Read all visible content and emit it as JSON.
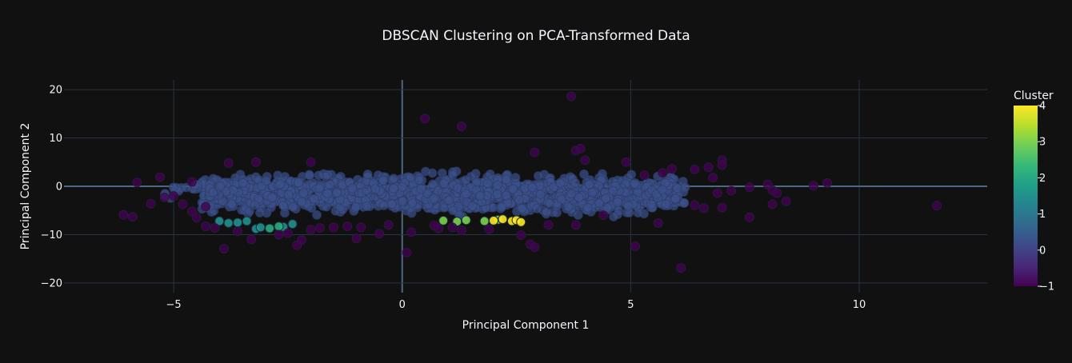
{
  "chart_data": {
    "type": "scatter",
    "title": "DBSCAN Clustering on PCA-Transformed Data",
    "xlabel": "Principal Component 1",
    "ylabel": "Principal Component 2",
    "xlim": [
      -7.4,
      12.8
    ],
    "ylim": [
      -22,
      22
    ],
    "xticks": [
      -5,
      0,
      5,
      10
    ],
    "yticks": [
      -20,
      -10,
      0,
      10,
      20
    ],
    "grid": true,
    "colorbar": {
      "title": "Cluster",
      "min": -1,
      "max": 4,
      "ticks": [
        -1,
        0,
        1,
        2,
        3,
        4
      ],
      "colorscale": [
        "#440154",
        "#482878",
        "#3e4989",
        "#31688e",
        "#26828e",
        "#1f9e89",
        "#35b779",
        "#6ece58",
        "#b5de2b",
        "#fde725"
      ]
    },
    "core_clusters": [
      {
        "cluster": 0,
        "color": "#3b518b",
        "x_range": [
          -4.4,
          6.2
        ],
        "center_y": -1.6,
        "half_height": 5.4,
        "count": 1400
      },
      {
        "cluster": 0,
        "color": "#3b518b",
        "x_range": [
          -5.2,
          -4.0
        ],
        "center_y": -1.0,
        "half_height": 2.5,
        "count": 30
      }
    ],
    "series": [
      {
        "cluster": 1,
        "color": "#21908d",
        "points": [
          [
            -4.0,
            -7.2
          ],
          [
            -3.8,
            -7.6
          ],
          [
            -3.6,
            -7.5
          ],
          [
            -3.4,
            -7.2
          ],
          [
            -3.2,
            -8.8
          ],
          [
            -3.1,
            -8.5
          ],
          [
            -2.6,
            -8.4
          ],
          [
            -2.4,
            -7.8
          ]
        ]
      },
      {
        "cluster": 2,
        "color": "#27ad81",
        "points": [
          [
            -2.9,
            -8.7
          ],
          [
            -2.7,
            -8.3
          ]
        ]
      },
      {
        "cluster": 3,
        "color": "#7ad151",
        "points": [
          [
            0.9,
            -7.1
          ],
          [
            1.2,
            -7.3
          ],
          [
            1.4,
            -7.0
          ],
          [
            1.8,
            -7.2
          ],
          [
            2.1,
            -6.9
          ]
        ]
      },
      {
        "cluster": 4,
        "color": "#fde725",
        "points": [
          [
            2.0,
            -7.1
          ],
          [
            2.2,
            -6.8
          ],
          [
            2.4,
            -7.2
          ],
          [
            2.5,
            -7.0
          ],
          [
            2.6,
            -7.4
          ]
        ]
      },
      {
        "cluster": -1,
        "color": "#440154",
        "points": [
          [
            3.7,
            18.6
          ],
          [
            0.5,
            14.0
          ],
          [
            1.3,
            12.4
          ],
          [
            2.9,
            7.0
          ],
          [
            3.8,
            7.4
          ],
          [
            3.9,
            7.8
          ],
          [
            4.0,
            5.4
          ],
          [
            4.9,
            5.0
          ],
          [
            6.7,
            3.9
          ],
          [
            7.0,
            5.4
          ],
          [
            7.0,
            4.4
          ],
          [
            5.3,
            2.3
          ],
          [
            5.7,
            2.8
          ],
          [
            5.9,
            3.6
          ],
          [
            6.4,
            3.5
          ],
          [
            6.8,
            1.8
          ],
          [
            6.9,
            -1.4
          ],
          [
            7.2,
            -0.9
          ],
          [
            7.6,
            -0.2
          ],
          [
            8.0,
            0.4
          ],
          [
            8.1,
            -0.8
          ],
          [
            8.2,
            -1.4
          ],
          [
            9.0,
            0.1
          ],
          [
            9.3,
            0.7
          ],
          [
            11.7,
            -4.0
          ],
          [
            8.4,
            -3.1
          ],
          [
            8.1,
            -3.7
          ],
          [
            7.6,
            -6.4
          ],
          [
            7.0,
            -4.4
          ],
          [
            6.6,
            -4.5
          ],
          [
            6.4,
            -3.9
          ],
          [
            5.6,
            -7.6
          ],
          [
            5.1,
            -12.4
          ],
          [
            6.1,
            -16.9
          ],
          [
            4.4,
            -6.0
          ],
          [
            3.8,
            -8.0
          ],
          [
            3.2,
            -8.0
          ],
          [
            2.6,
            -10.1
          ],
          [
            2.8,
            -12.0
          ],
          [
            2.9,
            -12.6
          ],
          [
            1.9,
            -8.9
          ],
          [
            1.3,
            -9.1
          ],
          [
            1.1,
            -8.5
          ],
          [
            0.8,
            -8.7
          ],
          [
            0.2,
            -9.5
          ],
          [
            0.1,
            -13.7
          ],
          [
            -0.3,
            -8.0
          ],
          [
            -0.9,
            -8.5
          ],
          [
            -1.0,
            -10.8
          ],
          [
            -1.2,
            -8.3
          ],
          [
            -1.5,
            -8.5
          ],
          [
            -1.8,
            -8.6
          ],
          [
            -2.2,
            -11.1
          ],
          [
            -2.3,
            -12.2
          ],
          [
            -2.5,
            -9.7
          ],
          [
            -2.7,
            -10.0
          ],
          [
            -3.3,
            -11.0
          ],
          [
            -3.9,
            -12.9
          ],
          [
            -4.1,
            -8.6
          ],
          [
            -4.3,
            -8.3
          ],
          [
            -4.5,
            -6.5
          ],
          [
            -4.8,
            -3.7
          ],
          [
            -5.0,
            -2.0
          ],
          [
            -5.2,
            -2.3
          ],
          [
            -5.3,
            1.9
          ],
          [
            -5.5,
            -3.6
          ],
          [
            -5.9,
            -6.3
          ],
          [
            -6.1,
            -5.9
          ],
          [
            -5.8,
            0.8
          ],
          [
            -4.6,
            0.9
          ],
          [
            -3.8,
            4.8
          ],
          [
            -3.2,
            5.0
          ],
          [
            -2.0,
            5.0
          ],
          [
            -4.3,
            -4.2
          ],
          [
            -4.6,
            -5.2
          ],
          [
            -3.6,
            -9.3
          ],
          [
            -2.0,
            -9.0
          ],
          [
            -0.5,
            -9.8
          ],
          [
            0.7,
            -8.1
          ]
        ]
      }
    ]
  }
}
